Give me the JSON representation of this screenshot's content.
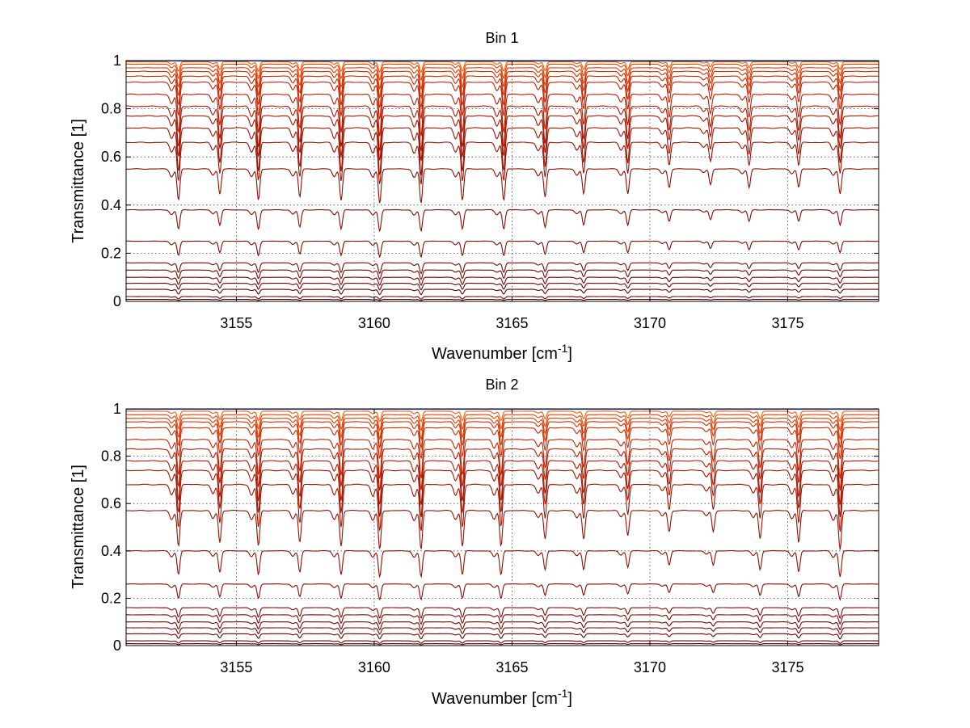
{
  "figure": {
    "background": "#ffffff"
  },
  "chart_data": [
    {
      "type": "line",
      "title": "Bin 1",
      "xlabel": "Wavenumber [cm",
      "xlabel_sup": "-1",
      "xlabel_end": "]",
      "ylabel": "Transmittance [1]",
      "xlim": [
        3151,
        3178.3
      ],
      "ylim": [
        0,
        1
      ],
      "xticks": [
        3155,
        3160,
        3165,
        3170,
        3175
      ],
      "xtick_labels": [
        "3155",
        "3160",
        "3165",
        "3170",
        "3175"
      ],
      "yticks": [
        0,
        0.2,
        0.4,
        0.6,
        0.8,
        1
      ],
      "ytick_labels": [
        "0",
        "0.2",
        "0.4",
        "0.6",
        "0.8",
        "1"
      ],
      "grid": true,
      "series_note": "Many overlaid transmittance spectra; each curve listed by its baseline level and line-depth scale",
      "absorption_lines": [
        {
          "center": 3152.9,
          "depth": 1.0
        },
        {
          "center": 3154.4,
          "depth": 0.8
        },
        {
          "center": 3155.8,
          "depth": 1.0
        },
        {
          "center": 3157.3,
          "depth": 0.9
        },
        {
          "center": 3158.8,
          "depth": 1.0
        },
        {
          "center": 3160.2,
          "depth": 1.1
        },
        {
          "center": 3161.7,
          "depth": 1.1
        },
        {
          "center": 3163.2,
          "depth": 1.0
        },
        {
          "center": 3164.7,
          "depth": 1.0
        },
        {
          "center": 3166.2,
          "depth": 0.9
        },
        {
          "center": 3167.6,
          "depth": 0.8
        },
        {
          "center": 3169.2,
          "depth": 0.8
        },
        {
          "center": 3170.7,
          "depth": 0.6
        },
        {
          "center": 3172.2,
          "depth": 0.5
        },
        {
          "center": 3173.6,
          "depth": 0.6
        },
        {
          "center": 3175.4,
          "depth": 0.6
        },
        {
          "center": 3176.9,
          "depth": 0.8
        }
      ],
      "series": [
        {
          "name": "s1",
          "baseline": 1.0,
          "depth_scale": 0.0,
          "color": "#1f4fd6"
        },
        {
          "name": "s2",
          "baseline": 0.995,
          "depth_scale": 0.04,
          "color": "#ff5a00"
        },
        {
          "name": "s3",
          "baseline": 0.985,
          "depth_scale": 0.06,
          "color": "#f04000"
        },
        {
          "name": "s4",
          "baseline": 0.97,
          "depth_scale": 0.08,
          "color": "#e33a00"
        },
        {
          "name": "s5",
          "baseline": 0.955,
          "depth_scale": 0.1,
          "color": "#d83000"
        },
        {
          "name": "s6",
          "baseline": 0.935,
          "depth_scale": 0.12,
          "color": "#cc2a00"
        },
        {
          "name": "s7",
          "baseline": 0.91,
          "depth_scale": 0.14,
          "color": "#c42200"
        },
        {
          "name": "s8",
          "baseline": 0.86,
          "depth_scale": 0.16,
          "color": "#b81c00"
        },
        {
          "name": "s9",
          "baseline": 0.81,
          "depth_scale": 0.17,
          "color": "#b01800"
        },
        {
          "name": "s10",
          "baseline": 0.77,
          "depth_scale": 0.17,
          "color": "#a81400"
        },
        {
          "name": "s11",
          "baseline": 0.72,
          "depth_scale": 0.18,
          "color": "#a01200"
        },
        {
          "name": "s12",
          "baseline": 0.66,
          "depth_scale": 0.16,
          "color": "#981000"
        },
        {
          "name": "s13",
          "baseline": 0.55,
          "depth_scale": 0.13,
          "color": "#900e00"
        },
        {
          "name": "s14",
          "baseline": 0.38,
          "depth_scale": 0.08,
          "color": "#880c00"
        },
        {
          "name": "s15",
          "baseline": 0.25,
          "depth_scale": 0.06,
          "color": "#820a00"
        },
        {
          "name": "s16",
          "baseline": 0.16,
          "depth_scale": 0.04,
          "color": "#7c0800"
        },
        {
          "name": "s17",
          "baseline": 0.13,
          "depth_scale": 0.035,
          "color": "#760600"
        },
        {
          "name": "s18",
          "baseline": 0.1,
          "depth_scale": 0.03,
          "color": "#700500"
        },
        {
          "name": "s19",
          "baseline": 0.075,
          "depth_scale": 0.025,
          "color": "#6a0400"
        },
        {
          "name": "s20",
          "baseline": 0.05,
          "depth_scale": 0.02,
          "color": "#640300"
        },
        {
          "name": "s21",
          "baseline": 0.02,
          "depth_scale": 0.01,
          "color": "#600200"
        },
        {
          "name": "s22",
          "baseline": 0.008,
          "depth_scale": 0.004,
          "color": "#5a0000"
        }
      ]
    },
    {
      "type": "line",
      "title": "Bin 2",
      "xlabel": "Wavenumber [cm",
      "xlabel_sup": "-1",
      "xlabel_end": "]",
      "ylabel": "Transmittance [1]",
      "xlim": [
        3151,
        3178.3
      ],
      "ylim": [
        0,
        1
      ],
      "xticks": [
        3155,
        3160,
        3165,
        3170,
        3175
      ],
      "xtick_labels": [
        "3155",
        "3160",
        "3165",
        "3170",
        "3175"
      ],
      "yticks": [
        0,
        0.2,
        0.4,
        0.6,
        0.8,
        1
      ],
      "ytick_labels": [
        "0",
        "0.2",
        "0.4",
        "0.6",
        "0.8",
        "1"
      ],
      "grid": true,
      "series_note": "Many overlaid transmittance spectra; each curve listed by its baseline level and line-depth scale",
      "absorption_lines": [
        {
          "center": 3152.9,
          "depth": 1.0
        },
        {
          "center": 3154.4,
          "depth": 0.9
        },
        {
          "center": 3155.8,
          "depth": 1.0
        },
        {
          "center": 3157.3,
          "depth": 0.9
        },
        {
          "center": 3158.8,
          "depth": 1.0
        },
        {
          "center": 3160.2,
          "depth": 1.1
        },
        {
          "center": 3161.7,
          "depth": 1.1
        },
        {
          "center": 3163.2,
          "depth": 1.0
        },
        {
          "center": 3164.6,
          "depth": 1.0
        },
        {
          "center": 3166.2,
          "depth": 0.8
        },
        {
          "center": 3167.6,
          "depth": 0.8
        },
        {
          "center": 3169.2,
          "depth": 0.7
        },
        {
          "center": 3170.7,
          "depth": 0.6
        },
        {
          "center": 3172.3,
          "depth": 0.6
        },
        {
          "center": 3174.0,
          "depth": 0.8
        },
        {
          "center": 3175.4,
          "depth": 0.9
        },
        {
          "center": 3176.9,
          "depth": 1.1
        }
      ],
      "series": [
        {
          "name": "s1",
          "baseline": 1.0,
          "depth_scale": 0.0,
          "color": "#1f4fd6"
        },
        {
          "name": "s2",
          "baseline": 0.99,
          "depth_scale": 0.04,
          "color": "#ff5a00"
        },
        {
          "name": "s3",
          "baseline": 0.975,
          "depth_scale": 0.06,
          "color": "#f04000"
        },
        {
          "name": "s4",
          "baseline": 0.96,
          "depth_scale": 0.08,
          "color": "#e33a00"
        },
        {
          "name": "s5",
          "baseline": 0.945,
          "depth_scale": 0.1,
          "color": "#d83000"
        },
        {
          "name": "s6",
          "baseline": 0.92,
          "depth_scale": 0.12,
          "color": "#cc2a00"
        },
        {
          "name": "s7",
          "baseline": 0.87,
          "depth_scale": 0.15,
          "color": "#c42200"
        },
        {
          "name": "s8",
          "baseline": 0.83,
          "depth_scale": 0.16,
          "color": "#b81c00"
        },
        {
          "name": "s9",
          "baseline": 0.78,
          "depth_scale": 0.17,
          "color": "#b01800"
        },
        {
          "name": "s10",
          "baseline": 0.74,
          "depth_scale": 0.18,
          "color": "#a81400"
        },
        {
          "name": "s11",
          "baseline": 0.68,
          "depth_scale": 0.18,
          "color": "#a01200"
        },
        {
          "name": "s12",
          "baseline": 0.57,
          "depth_scale": 0.15,
          "color": "#981000"
        },
        {
          "name": "s13",
          "baseline": 0.4,
          "depth_scale": 0.1,
          "color": "#900e00"
        },
        {
          "name": "s14",
          "baseline": 0.26,
          "depth_scale": 0.06,
          "color": "#880c00"
        },
        {
          "name": "s15",
          "baseline": 0.16,
          "depth_scale": 0.04,
          "color": "#820a00"
        },
        {
          "name": "s16",
          "baseline": 0.13,
          "depth_scale": 0.035,
          "color": "#7c0800"
        },
        {
          "name": "s17",
          "baseline": 0.1,
          "depth_scale": 0.03,
          "color": "#760600"
        },
        {
          "name": "s18",
          "baseline": 0.075,
          "depth_scale": 0.025,
          "color": "#700500"
        },
        {
          "name": "s19",
          "baseline": 0.05,
          "depth_scale": 0.02,
          "color": "#6a0400"
        },
        {
          "name": "s20",
          "baseline": 0.02,
          "depth_scale": 0.01,
          "color": "#640300"
        },
        {
          "name": "s21",
          "baseline": 0.008,
          "depth_scale": 0.004,
          "color": "#5a0000"
        }
      ]
    }
  ]
}
